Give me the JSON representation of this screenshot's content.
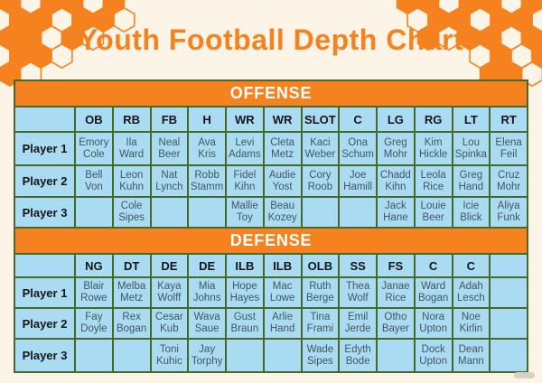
{
  "title": "Youth Football Depth Chart",
  "sections": [
    {
      "name": "OFFENSE",
      "positions": [
        "OB",
        "RB",
        "FB",
        "H",
        "WR",
        "WR",
        "SLOT",
        "C",
        "LG",
        "RG",
        "LT",
        "RT"
      ],
      "rows": [
        {
          "label": "Player 1",
          "players": [
            "Emory Cole",
            "Ila Ward",
            "Neal Beer",
            "Ava Kris",
            "Levi Adams",
            "Cleta Metz",
            "Kaci Weber",
            "Ona Schum",
            "Greg Mohr",
            "Kim Hickle",
            "Lou Spinka",
            "Elena Feil"
          ]
        },
        {
          "label": "Player 2",
          "players": [
            "Bell Von",
            "Leon Kuhn",
            "Nat Lynch",
            "Robb Stamm",
            "Fidel Kihn",
            "Audie Yost",
            "Cory Roob",
            "Joe Hamill",
            "Chadd Kihn",
            "Leola Rice",
            "Greg Hand",
            "Cruz Mohr"
          ]
        },
        {
          "label": "Player 3",
          "players": [
            "",
            "Cole Sipes",
            "",
            "",
            "Mallie Toy",
            "Beau Kozey",
            "",
            "",
            "Jack Hane",
            "Louie Beer",
            "Icie Blick",
            "Aliya Funk"
          ]
        }
      ]
    },
    {
      "name": "DEFENSE",
      "positions": [
        "NG",
        "DT",
        "DE",
        "DE",
        "ILB",
        "ILB",
        "OLB",
        "SS",
        "FS",
        "C",
        "C",
        ""
      ],
      "rows": [
        {
          "label": "Player 1",
          "players": [
            "Blair Rowe",
            "Melba Metz",
            "Kaya Wolff",
            "Mia Johns",
            "Hope Hayes",
            "Mac Lowe",
            "Ruth Berge",
            "Thea Wolf",
            "Janae Rice",
            "Ward Bogan",
            "Adah Lesch",
            ""
          ]
        },
        {
          "label": "Player 2",
          "players": [
            "Fay Doyle",
            "Rex Bogan",
            "Cesar Kub",
            "Wava Saue",
            "Gust Braun",
            "Arlie Hand",
            "Tina Frami",
            "Emil Jerde",
            "Otho Bayer",
            "Nora Upton",
            "Noe Kirlin",
            ""
          ]
        },
        {
          "label": "Player 3",
          "players": [
            "",
            "",
            "Toni Kuhic",
            "Jay Torphy",
            "",
            "",
            "Wade Sipes",
            "Edyth Bode",
            "",
            "Dock Upton",
            "Dean Mann",
            ""
          ]
        }
      ]
    }
  ],
  "colors": {
    "accent_orange": "#F6821F",
    "cell_blue": "#A9DCF2",
    "border_green": "#46682A",
    "background_cream": "#FBF4E7",
    "section_text": "#FFFFFF",
    "player_text": "#46545F"
  }
}
